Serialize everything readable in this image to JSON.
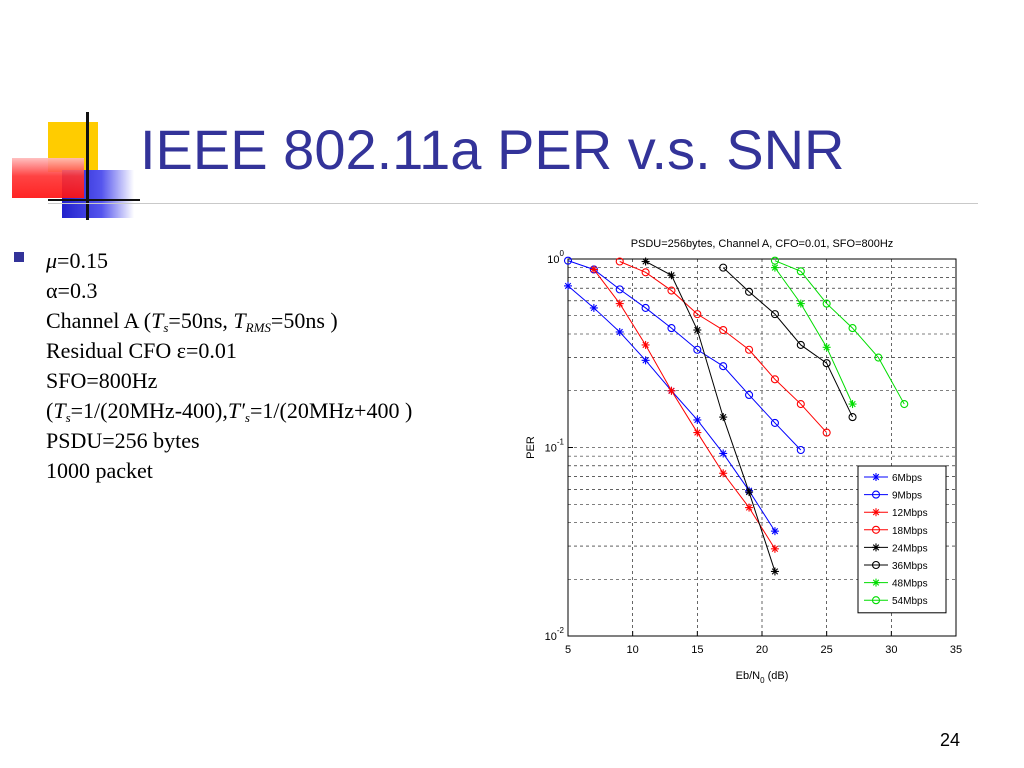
{
  "slide": {
    "title": "IEEE 802.11a PER v.s. SNR",
    "page_number": "24",
    "colors": {
      "title": "#333399",
      "deco_yellow": "#ffcc00",
      "deco_red": "#ff3333",
      "deco_blue": "#3333cc"
    }
  },
  "bullet": {
    "line1": {
      "sym": "μ",
      "rest": "=0.15"
    },
    "line2": {
      "sym": "α",
      "rest": "=0.3"
    },
    "line3": {
      "a": "Channel A (",
      "ts": "T",
      "ts_sub": "s",
      "b": "=50ns, ",
      "trms": "T",
      "trms_sub": "RMS",
      "c": "=50ns )"
    },
    "line4": "Residual CFO ε=0.01",
    "line5": "SFO=800Hz",
    "line6": {
      "a": "(",
      "ts": "T",
      "ts_sub": "s",
      "b": "=1/(20MHz-400),",
      "tsp": "T′",
      "tsp_sub": "s",
      "c": "=1/(20MHz+400 )"
    },
    "line7": "PSDU=256 bytes",
    "line8": "1000 packet"
  },
  "chart_data": {
    "type": "line",
    "title": "PSDU=256bytes, Channel A, CFO=0.01, SFO=800Hz",
    "xlabel": "Eb/N0 (dB)",
    "ylabel": "PER",
    "xlim": [
      5,
      35
    ],
    "ylim": [
      0.01,
      1
    ],
    "yscale": "log",
    "x_ticks": [
      "5",
      "10",
      "15",
      "20",
      "25",
      "30",
      "35"
    ],
    "y_ticks": [
      "10^0",
      "10^-1",
      "10^-2"
    ],
    "grid": true,
    "legend_position": "bottom-right",
    "series": [
      {
        "name": "6Mbps",
        "color": "#0000ff",
        "marker": "star",
        "x": [
          5,
          7,
          9,
          11,
          13,
          15,
          17,
          19,
          21
        ],
        "y": [
          0.72,
          0.55,
          0.41,
          0.29,
          0.2,
          0.14,
          0.093,
          0.059,
          0.036
        ]
      },
      {
        "name": "9Mbps",
        "color": "#0000ff",
        "marker": "circle",
        "x": [
          5,
          7,
          9,
          11,
          13,
          15,
          17,
          19,
          21,
          23
        ],
        "y": [
          0.98,
          0.88,
          0.69,
          0.55,
          0.43,
          0.33,
          0.27,
          0.19,
          0.135,
          0.097
        ]
      },
      {
        "name": "12Mbps",
        "color": "#ff0000",
        "marker": "star",
        "x": [
          7,
          9,
          11,
          13,
          15,
          17,
          19,
          21
        ],
        "y": [
          0.88,
          0.58,
          0.35,
          0.2,
          0.12,
          0.073,
          0.048,
          0.029
        ]
      },
      {
        "name": "18Mbps",
        "color": "#ff0000",
        "marker": "circle",
        "x": [
          9,
          11,
          13,
          15,
          17,
          19,
          21,
          23,
          25
        ],
        "y": [
          0.97,
          0.85,
          0.68,
          0.51,
          0.42,
          0.33,
          0.23,
          0.17,
          0.12
        ]
      },
      {
        "name": "24Mbps",
        "color": "#000000",
        "marker": "star",
        "x": [
          11,
          13,
          15,
          17,
          19,
          21
        ],
        "y": [
          0.97,
          0.82,
          0.42,
          0.145,
          0.058,
          0.022
        ]
      },
      {
        "name": "36Mbps",
        "color": "#000000",
        "marker": "circle",
        "x": [
          17,
          19,
          21,
          23,
          25,
          27
        ],
        "y": [
          0.9,
          0.67,
          0.51,
          0.35,
          0.28,
          0.145
        ]
      },
      {
        "name": "48Mbps",
        "color": "#00dd00",
        "marker": "star",
        "x": [
          21,
          23,
          25,
          27
        ],
        "y": [
          0.9,
          0.58,
          0.34,
          0.17
        ]
      },
      {
        "name": "54Mbps",
        "color": "#00dd00",
        "marker": "circle",
        "x": [
          21,
          23,
          25,
          27,
          29,
          31
        ],
        "y": [
          0.98,
          0.86,
          0.58,
          0.43,
          0.3,
          0.17
        ]
      }
    ]
  }
}
